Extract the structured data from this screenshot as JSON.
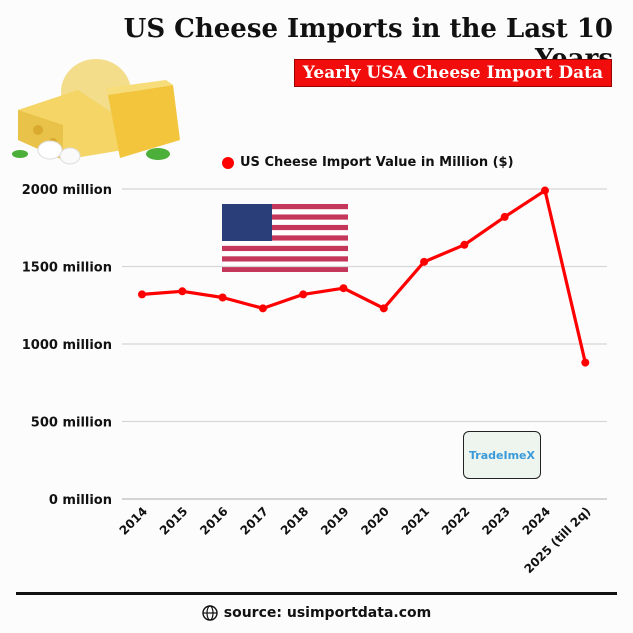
{
  "header": {
    "title": "US Cheese Imports in the Last 10 Years",
    "subtitle": "Yearly USA Cheese Import Data"
  },
  "footer": {
    "source": "source: usimportdata.com",
    "icon": "globe-icon"
  },
  "logo": {
    "text": "TradeImeX"
  },
  "colors": {
    "line": "#ff0000",
    "banner": "#f20d0d"
  },
  "chart_data": {
    "type": "line",
    "title": "US Cheese Imports in the Last 10 Years",
    "subtitle": "Yearly USA Cheese Import Data",
    "categories": [
      "2014",
      "2015",
      "2016",
      "2017",
      "2018",
      "2019",
      "2020",
      "2021",
      "2022",
      "2023",
      "2024",
      "2025 (till 2q)"
    ],
    "series": [
      {
        "name": "US Cheese Import Value in Million ($)",
        "values": [
          1320,
          1340,
          1300,
          1230,
          1320,
          1360,
          1230,
          1530,
          1640,
          1820,
          1990,
          880
        ]
      }
    ],
    "yticks": [
      0,
      500,
      1000,
      1500,
      2000
    ],
    "ytick_labels": [
      "0 million",
      "500 million",
      "1000 million",
      "1500 million",
      "2000 million"
    ],
    "ylim": [
      0,
      2000
    ],
    "grid": true,
    "legend": "top"
  }
}
